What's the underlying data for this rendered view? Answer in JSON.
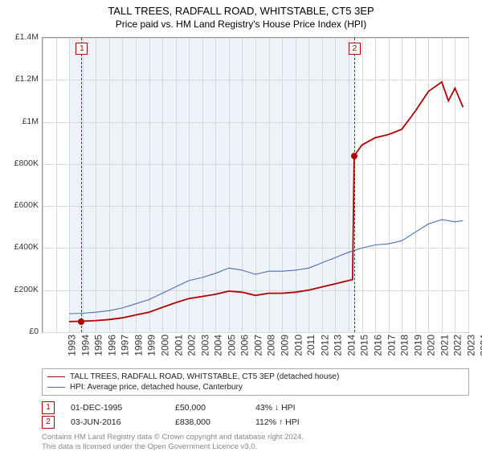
{
  "title": "TALL TREES, RADFALL ROAD, WHITSTABLE, CT5 3EP",
  "subtitle": "Price paid vs. HM Land Registry's House Price Index (HPI)",
  "chart": {
    "type": "line",
    "background_color": "#ffffff",
    "border_color": "#999999",
    "grid_color": "#d8d8d8",
    "text_color": "#333333",
    "title_fontsize": 13,
    "subtitle_fontsize": 12,
    "axis_fontsize": 11,
    "ylim": [
      0,
      1400000
    ],
    "ytick_step": 200000,
    "y_ticks": [
      "£0",
      "£200K",
      "£400K",
      "£600K",
      "£800K",
      "£1M",
      "£1.2M",
      "£1.4M"
    ],
    "xlim": [
      1993,
      2025
    ],
    "x_ticks": [
      "1993",
      "1994",
      "1995",
      "1996",
      "1997",
      "1998",
      "1999",
      "2000",
      "2001",
      "2002",
      "2003",
      "2004",
      "2005",
      "2006",
      "2007",
      "2008",
      "2009",
      "2010",
      "2011",
      "2012",
      "2013",
      "2014",
      "2015",
      "2016",
      "2017",
      "2018",
      "2019",
      "2020",
      "2021",
      "2022",
      "2023",
      "2024",
      "2025"
    ],
    "shaded_region": {
      "x_from": 1995,
      "x_to": 2016.4,
      "color": "#eef3fa"
    },
    "series": [
      {
        "name": "property",
        "label": "TALL TREES, RADFALL ROAD, WHITSTABLE, CT5 3EP (detached house)",
        "color": "#b00000",
        "line_width": 1.8,
        "data": [
          [
            1995,
            50000
          ],
          [
            1996,
            52000
          ],
          [
            1997,
            55000
          ],
          [
            1998,
            60000
          ],
          [
            1999,
            68000
          ],
          [
            2000,
            82000
          ],
          [
            2001,
            95000
          ],
          [
            2002,
            118000
          ],
          [
            2003,
            140000
          ],
          [
            2004,
            160000
          ],
          [
            2005,
            170000
          ],
          [
            2006,
            180000
          ],
          [
            2007,
            195000
          ],
          [
            2008,
            190000
          ],
          [
            2009,
            175000
          ],
          [
            2010,
            185000
          ],
          [
            2011,
            185000
          ],
          [
            2012,
            190000
          ],
          [
            2013,
            200000
          ],
          [
            2014,
            215000
          ],
          [
            2015,
            230000
          ],
          [
            2016.3,
            250000
          ],
          [
            2016.42,
            838000
          ],
          [
            2017,
            890000
          ],
          [
            2018,
            925000
          ],
          [
            2019,
            940000
          ],
          [
            2020,
            965000
          ],
          [
            2021,
            1050000
          ],
          [
            2022,
            1145000
          ],
          [
            2023,
            1190000
          ],
          [
            2023.5,
            1100000
          ],
          [
            2024,
            1160000
          ],
          [
            2024.6,
            1070000
          ]
        ]
      },
      {
        "name": "hpi",
        "label": "HPI: Average price, detached house, Canterbury",
        "color": "#4a6fb0",
        "line_width": 1.1,
        "data": [
          [
            1995,
            88000
          ],
          [
            1996,
            90000
          ],
          [
            1997,
            95000
          ],
          [
            1998,
            102000
          ],
          [
            1999,
            115000
          ],
          [
            2000,
            135000
          ],
          [
            2001,
            155000
          ],
          [
            2002,
            185000
          ],
          [
            2003,
            215000
          ],
          [
            2004,
            245000
          ],
          [
            2005,
            260000
          ],
          [
            2006,
            280000
          ],
          [
            2007,
            305000
          ],
          [
            2008,
            295000
          ],
          [
            2009,
            275000
          ],
          [
            2010,
            290000
          ],
          [
            2011,
            290000
          ],
          [
            2012,
            295000
          ],
          [
            2013,
            305000
          ],
          [
            2014,
            330000
          ],
          [
            2015,
            355000
          ],
          [
            2016,
            380000
          ],
          [
            2017,
            400000
          ],
          [
            2018,
            415000
          ],
          [
            2019,
            420000
          ],
          [
            2020,
            435000
          ],
          [
            2021,
            475000
          ],
          [
            2022,
            515000
          ],
          [
            2023,
            535000
          ],
          [
            2024,
            525000
          ],
          [
            2024.6,
            530000
          ]
        ]
      }
    ],
    "markers": [
      {
        "id": "1",
        "x": 1995.92,
        "y_price": 50000
      },
      {
        "id": "2",
        "x": 2016.42,
        "y_price": 838000
      }
    ]
  },
  "legend": {
    "border_color": "#aaaaaa",
    "fontsize": 10
  },
  "sales": [
    {
      "marker": "1",
      "date": "01-DEC-1995",
      "price": "£50,000",
      "delta": "43% ↓ HPI"
    },
    {
      "marker": "2",
      "date": "03-JUN-2016",
      "price": "£838,000",
      "delta": "112% ↑ HPI"
    }
  ],
  "footer": {
    "line1": "Contains HM Land Registry data © Crown copyright and database right 2024.",
    "line2": "This data is licensed under the Open Government Licence v3.0.",
    "color": "#888888",
    "fontsize": 9.5
  }
}
